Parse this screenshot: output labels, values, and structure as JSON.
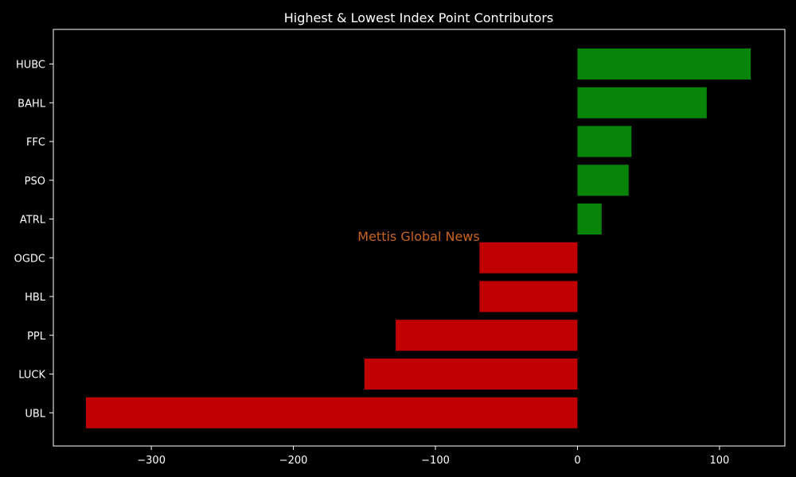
{
  "chart_data": {
    "type": "bar",
    "orientation": "horizontal",
    "title": "Highest & Lowest Index Point Contributors",
    "xlabel": "",
    "ylabel": "",
    "categories": [
      "HUBC",
      "BAHL",
      "FFC",
      "PSO",
      "ATRL",
      "OGDC",
      "HBL",
      "PPL",
      "LUCK",
      "UBL"
    ],
    "values": [
      122,
      91,
      38,
      36,
      17,
      -69,
      -69,
      -128,
      -150,
      -346
    ],
    "xlim": [
      -369,
      146
    ],
    "xticks": [
      -300,
      -200,
      -100,
      0,
      100
    ],
    "xtick_labels": [
      "−300",
      "−200",
      "−100",
      "0",
      "100"
    ],
    "grid": false,
    "legend": "none",
    "colors": {
      "positive": "#088408",
      "negative": "#c00000",
      "background": "#000000",
      "axes": "#ffffff",
      "text": "#ffffff",
      "watermark": "#c8641e"
    },
    "watermark": "Mettis Global News"
  }
}
